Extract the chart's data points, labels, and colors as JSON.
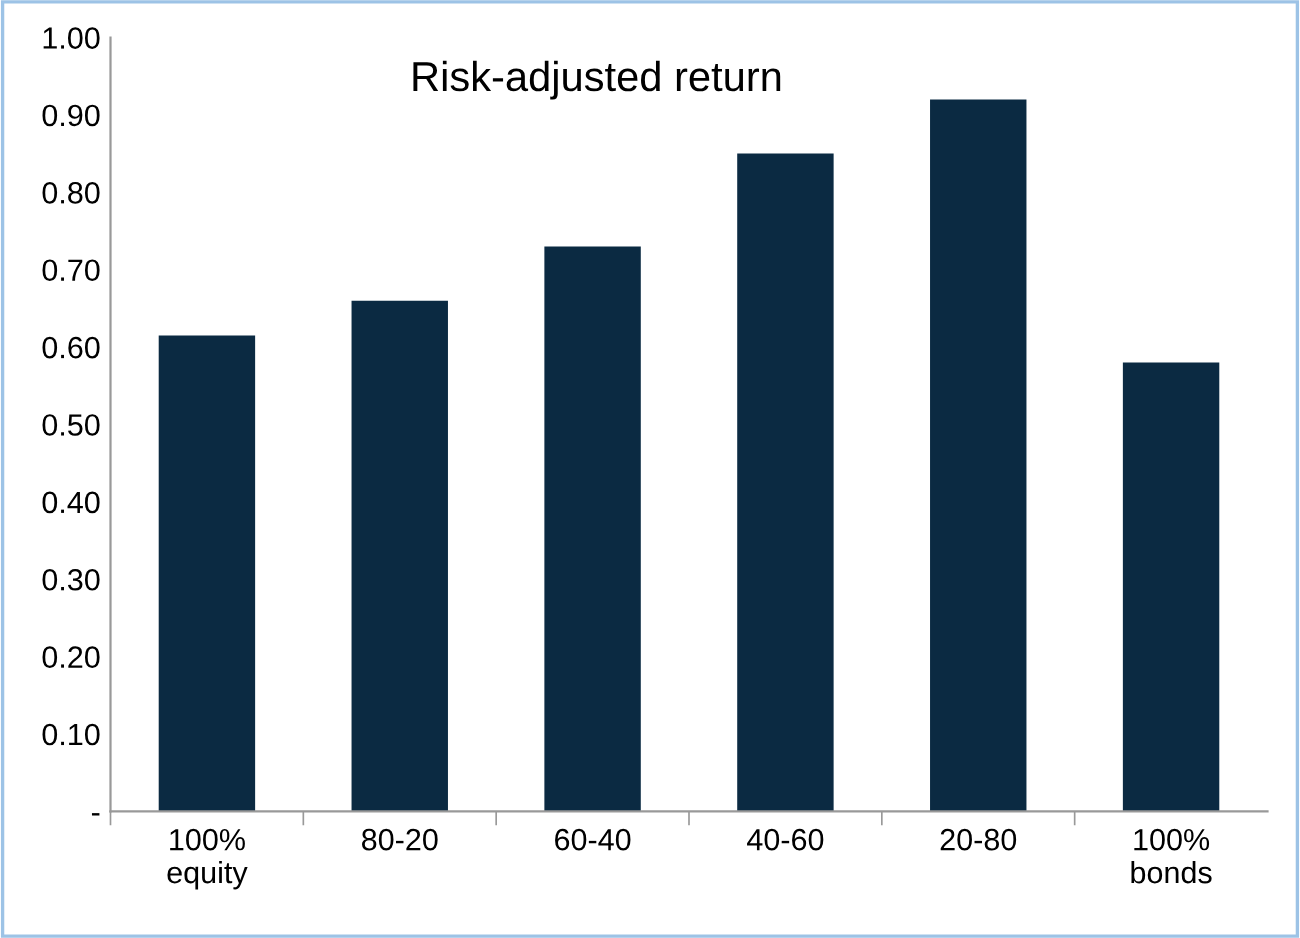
{
  "chart_data": {
    "type": "bar",
    "title": "Risk-adjusted return",
    "categories": [
      "100%\nequity",
      "80-20",
      "60-40",
      "40-60",
      "20-80",
      "100%\nbonds"
    ],
    "values": [
      0.615,
      0.66,
      0.73,
      0.85,
      0.92,
      0.58
    ],
    "color": "#0b2a42",
    "ylim": [
      0,
      1
    ],
    "yticks": [
      {
        "value": 0,
        "label": "-"
      },
      {
        "value": 0.1,
        "label": "0.10"
      },
      {
        "value": 0.2,
        "label": "0.20"
      },
      {
        "value": 0.3,
        "label": "0.30"
      },
      {
        "value": 0.4,
        "label": "0.40"
      },
      {
        "value": 0.5,
        "label": "0.50"
      },
      {
        "value": 0.6,
        "label": "0.60"
      },
      {
        "value": 0.7,
        "label": "0.70"
      },
      {
        "value": 0.8,
        "label": "0.80"
      },
      {
        "value": 0.9,
        "label": "0.90"
      },
      {
        "value": 1,
        "label": "1.00"
      }
    ],
    "grid": false
  }
}
